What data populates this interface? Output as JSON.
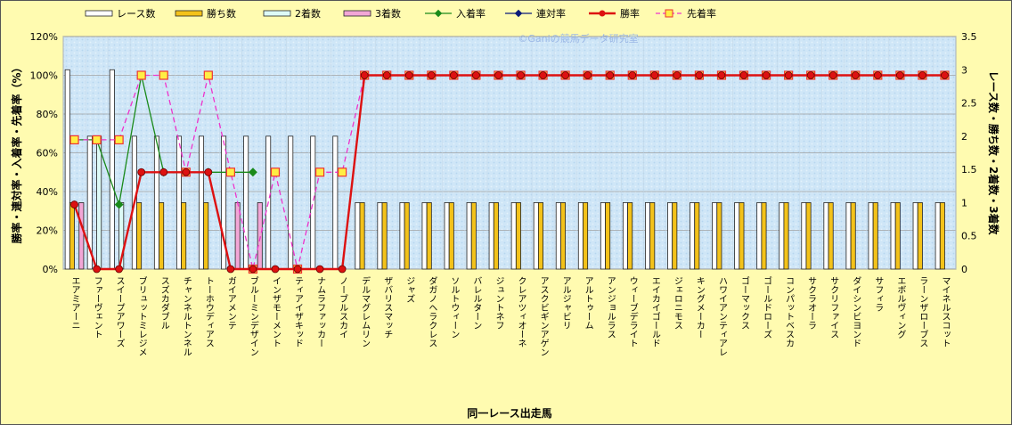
{
  "chart_data": {
    "type": "bar",
    "title": "",
    "watermark": "©Ganiの競馬データ研究室",
    "xlabel": "同一レース出走馬",
    "ylabel_left": "勝率・連対率・入着率・先着率（%）",
    "ylabel_right": "レース数・勝ち数・2着数・3着数",
    "ylim_left": [
      0,
      120
    ],
    "ylim_right": [
      0,
      3.5
    ],
    "yticks_left": [
      "0%",
      "20%",
      "40%",
      "60%",
      "80%",
      "100%",
      "120%"
    ],
    "yticks_right": [
      "0",
      "0.5",
      "1",
      "1.5",
      "2",
      "2.5",
      "3",
      "3.5"
    ],
    "grid": true,
    "legend_position": "top",
    "categories": [
      "エアミアーニ",
      "ファーヴェント",
      "スイープアワーズ",
      "ブリュットミレジメ",
      "スズカダブル",
      "チャンネルトンネル",
      "トーホウディアス",
      "ガイアメンテ",
      "ブルーミンデザイン",
      "インザモーメント",
      "ティアイザキッド",
      "ナムラファッカー",
      "ノーブルスカイ",
      "デルマグレムリン",
      "ザバリスマッチ",
      "ジャズ",
      "ダガノヘラクレス",
      "ソルトウィーン",
      "バレルターン",
      "ジュントネフ",
      "クレアツィオーネ",
      "アスクビギンアゲン",
      "アルジャビリ",
      "アルトゥーム",
      "アンジョルラス",
      "ウィーブデライト",
      "エイカイゴールド",
      "ジェロニモス",
      "キングメーカー",
      "ハワイアンティアレ",
      "ゴーマックス",
      "ゴールドローズ",
      "コンパットベスカ",
      "サクラオーラ",
      "サクリファイス",
      "ダイシンビヨンド",
      "サフィラ",
      "エボルヴィング",
      "ラーンザローブス",
      "マイネルスコット"
    ],
    "series": [
      {
        "name": "レース数",
        "kind": "bar",
        "axis": "right",
        "color": "#ffffff",
        "values": [
          3,
          2,
          3,
          2,
          2,
          2,
          2,
          2,
          2,
          2,
          2,
          2,
          2,
          1,
          1,
          1,
          1,
          1,
          1,
          1,
          1,
          1,
          1,
          1,
          1,
          1,
          1,
          1,
          1,
          1,
          1,
          1,
          1,
          1,
          1,
          1,
          1,
          1,
          1,
          1
        ]
      },
      {
        "name": "勝ち数",
        "kind": "bar",
        "axis": "right",
        "color": "#f3c21a",
        "values": [
          1,
          0,
          0,
          1,
          1,
          1,
          1,
          0,
          0,
          0,
          0,
          0,
          0,
          1,
          1,
          1,
          1,
          1,
          1,
          1,
          1,
          1,
          1,
          1,
          1,
          1,
          1,
          1,
          1,
          1,
          1,
          1,
          1,
          1,
          1,
          1,
          1,
          1,
          1,
          1
        ]
      },
      {
        "name": "2着数",
        "kind": "bar",
        "axis": "right",
        "color": "#ddfaf6",
        "values": [
          0,
          2,
          1,
          0,
          0,
          0,
          0,
          0,
          0,
          0,
          0,
          0,
          0,
          0,
          0,
          0,
          0,
          0,
          0,
          0,
          0,
          0,
          0,
          0,
          0,
          0,
          0,
          0,
          0,
          0,
          0,
          0,
          0,
          0,
          0,
          0,
          0,
          0,
          0,
          0
        ]
      },
      {
        "name": "3着数",
        "kind": "bar",
        "axis": "right",
        "color": "#f2a6d6",
        "values": [
          1,
          0,
          0,
          0,
          0,
          0,
          0,
          1,
          1,
          0,
          0,
          0,
          0,
          0,
          0,
          0,
          0,
          0,
          0,
          0,
          0,
          0,
          0,
          0,
          0,
          0,
          0,
          0,
          0,
          0,
          0,
          0,
          0,
          0,
          0,
          0,
          0,
          0,
          0,
          0
        ]
      },
      {
        "name": "入着率",
        "kind": "line",
        "axis": "left",
        "color": "#1a8a1a",
        "values": [
          66.7,
          66.7,
          33.3,
          100,
          50,
          50,
          50,
          50,
          50,
          null,
          null,
          null,
          null,
          null,
          null,
          null,
          null,
          null,
          null,
          null,
          null,
          null,
          null,
          null,
          null,
          null,
          null,
          null,
          null,
          null,
          null,
          null,
          null,
          null,
          null,
          null,
          null,
          null,
          null,
          null
        ]
      },
      {
        "name": "連対率",
        "kind": "line",
        "axis": "left",
        "color": "#0a1a7a",
        "values": [
          null,
          null,
          null,
          null,
          null,
          null,
          null,
          null,
          null,
          null,
          null,
          null,
          null,
          null,
          null,
          null,
          null,
          null,
          null,
          null,
          null,
          null,
          null,
          null,
          null,
          null,
          null,
          null,
          null,
          null,
          null,
          null,
          null,
          null,
          null,
          null,
          null,
          null,
          null,
          null
        ]
      },
      {
        "name": "勝率",
        "kind": "line",
        "axis": "left",
        "color": "#dd1111",
        "values": [
          33.3,
          0,
          0,
          50,
          50,
          50,
          50,
          0,
          0,
          0,
          0,
          0,
          0,
          100,
          100,
          100,
          100,
          100,
          100,
          100,
          100,
          100,
          100,
          100,
          100,
          100,
          100,
          100,
          100,
          100,
          100,
          100,
          100,
          100,
          100,
          100,
          100,
          100,
          100,
          100
        ]
      },
      {
        "name": "先着率",
        "kind": "line",
        "axis": "left",
        "color": "#ee33cc",
        "values": [
          66.7,
          66.7,
          66.7,
          100,
          100,
          50,
          100,
          50,
          0,
          50,
          0,
          50,
          50,
          100,
          100,
          100,
          100,
          100,
          100,
          100,
          100,
          100,
          100,
          100,
          100,
          100,
          100,
          100,
          100,
          100,
          100,
          100,
          100,
          100,
          100,
          100,
          100,
          100,
          100,
          100
        ]
      }
    ]
  }
}
